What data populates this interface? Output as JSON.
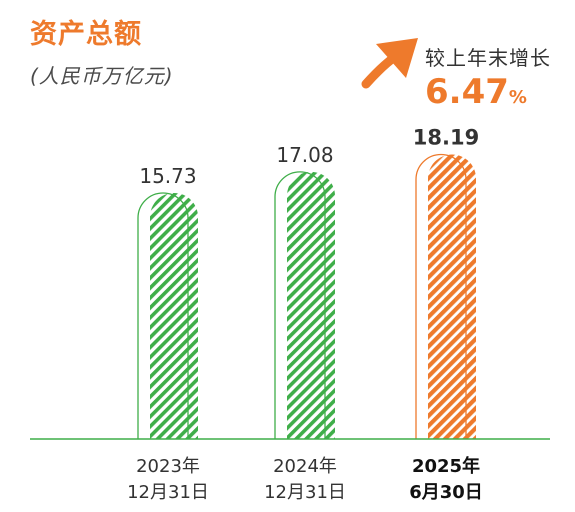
{
  "header": {
    "title": "资产总额",
    "subtitle": "(人民币万亿元)"
  },
  "growth": {
    "label": "较上年末增长",
    "value": "6.47",
    "unit": "%"
  },
  "colors": {
    "accent": "#ee7a2c",
    "green": "#3fae49",
    "text": "#333333"
  },
  "chart_data": {
    "type": "bar",
    "title": "资产总额",
    "subtitle": "(人民币万亿元)",
    "categories": [
      [
        "2023年",
        "12月31日"
      ],
      [
        "2024年",
        "12月31日"
      ],
      [
        "2025年",
        "6月30日"
      ]
    ],
    "values": [
      15.73,
      17.08,
      18.19
    ],
    "value_labels": [
      "15.73",
      "17.08",
      "18.19"
    ],
    "highlight_index": 2,
    "ylim": [
      0,
      19.5
    ],
    "grid": false,
    "legend": "none"
  }
}
